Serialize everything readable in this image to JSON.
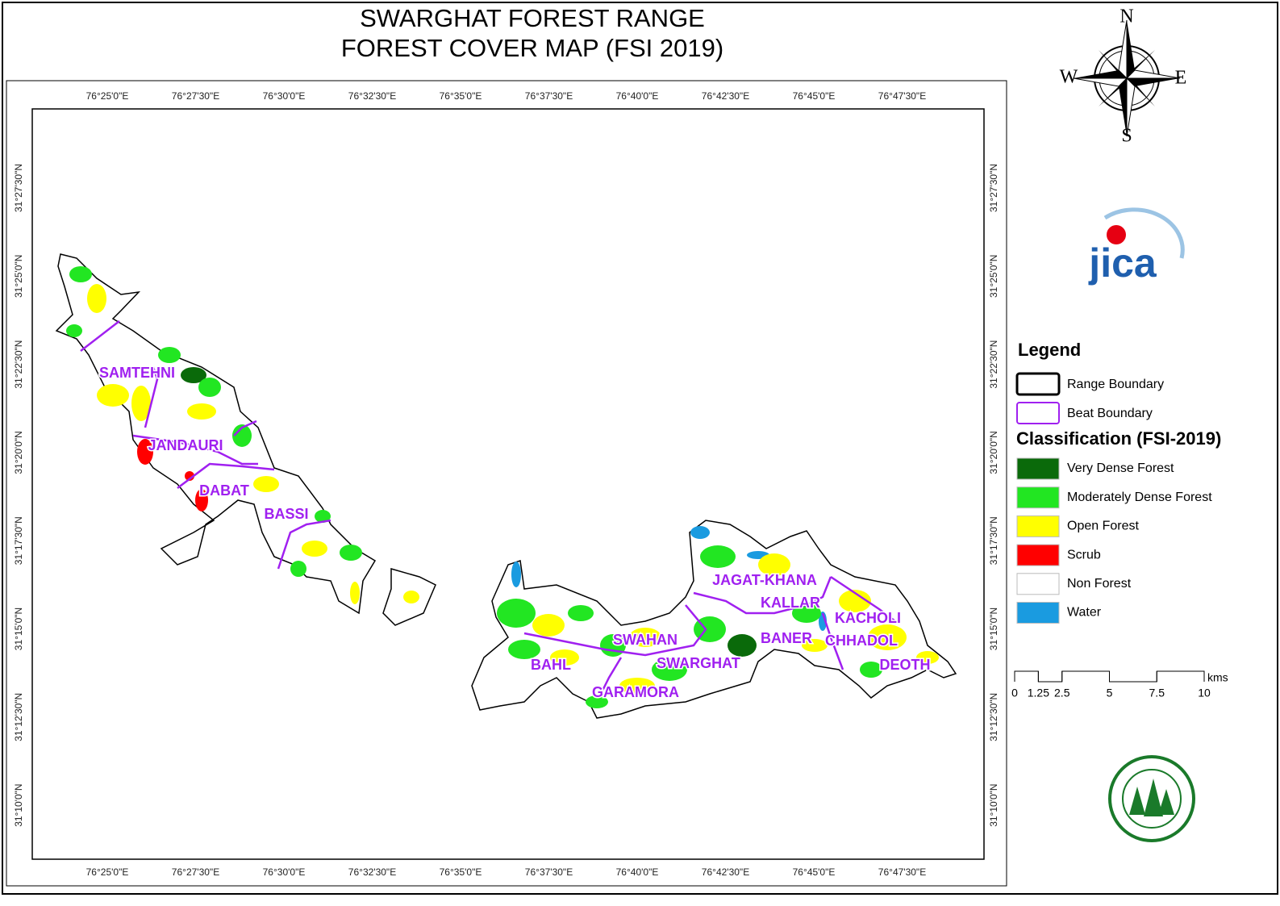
{
  "title": [
    "SWARGHAT FOREST RANGE",
    "FOREST COVER MAP (FSI 2019)"
  ],
  "compass": {
    "north": "N",
    "south": "S",
    "east": "E",
    "west": "W"
  },
  "longitude_labels": [
    "76°25'0\"E",
    "76°27'30\"E",
    "76°30'0\"E",
    "76°32'30\"E",
    "76°35'0\"E",
    "76°37'30\"E",
    "76°40'0\"E",
    "76°42'30\"E",
    "76°45'0\"E",
    "76°47'30\"E"
  ],
  "latitude_labels": [
    "31°27'30\"N",
    "31°25'0\"N",
    "31°22'30\"N",
    "31°20'0\"N",
    "31°17'30\"N",
    "31°15'0\"N",
    "31°12'30\"N",
    "31°10'0\"N"
  ],
  "beats": [
    "SAMTEHNI",
    "JANDAURI",
    "DABAT",
    "BASSI",
    "JAGAT-KHANA",
    "KALLAR",
    "KACHOLI",
    "BANER",
    "CHHADOL",
    "SWAHAN",
    "BAHL",
    "SWARGHAT",
    "DEOTH",
    "GARAMORA"
  ],
  "legend": {
    "title": "Legend",
    "boundaries": [
      {
        "label": "Range Boundary",
        "color": "#000000"
      },
      {
        "label": "Beat Boundary",
        "color": "#a020f0"
      }
    ],
    "classification_title": "Classification (FSI-2019)",
    "classes": [
      {
        "label": "Very Dense Forest",
        "color": "#0a6a0a"
      },
      {
        "label": "Moderately Dense Forest",
        "color": "#22e622"
      },
      {
        "label": "Open Forest",
        "color": "#ffff00"
      },
      {
        "label": "Scrub",
        "color": "#ff0000"
      },
      {
        "label": "Non Forest",
        "color": "#ffffff"
      },
      {
        "label": "Water",
        "color": "#1a9be0"
      }
    ]
  },
  "scale_bar": {
    "ticks": [
      0,
      1.25,
      2.5,
      5,
      7.5,
      10
    ],
    "unit": "kms"
  },
  "logo": "jica"
}
